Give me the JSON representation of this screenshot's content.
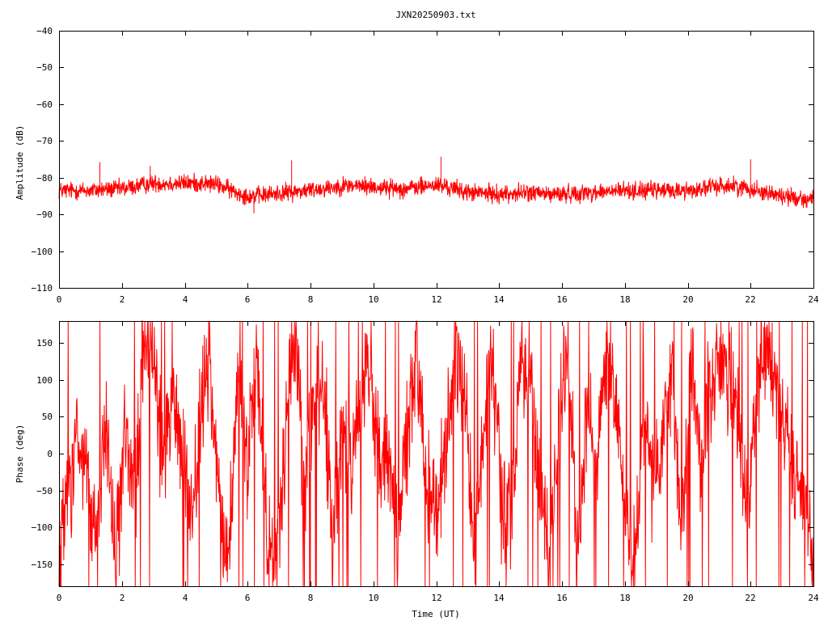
{
  "chart_data": {
    "title": "JXN20250903.txt",
    "type": "line",
    "color": "#ff0000",
    "xlabel": "Time (UT)",
    "xlim": [
      0,
      24
    ],
    "xticks": [
      0,
      2,
      4,
      6,
      8,
      10,
      12,
      14,
      16,
      18,
      20,
      22,
      24
    ],
    "panels": [
      {
        "id": "amplitude",
        "ylabel": "Amplitude (dB)",
        "ylim": [
          -110,
          -40
        ],
        "yticks": [
          -110,
          -100,
          -90,
          -80,
          -70,
          -60,
          -50,
          -40
        ],
        "series": [
          {
            "x": [
              0,
              0.5,
              1,
              1.5,
              2,
              2.5,
              3,
              3.5,
              4,
              4.5,
              5,
              5.5,
              6,
              6.5,
              7,
              7.5,
              8,
              8.5,
              9,
              9.5,
              10,
              10.5,
              11,
              11.5,
              12,
              12.5,
              13,
              13.5,
              14,
              14.5,
              15,
              15.5,
              16,
              16.5,
              17,
              17.5,
              18,
              18.5,
              19,
              19.5,
              20,
              20.5,
              21,
              21.5,
              22,
              22.5,
              23,
              23.5,
              24
            ],
            "mean": [
              -83.5,
              -83.5,
              -83.5,
              -83.2,
              -83,
              -82.3,
              -81.5,
              -81.6,
              -81.5,
              -81.5,
              -81.8,
              -83.5,
              -85,
              -84.8,
              -84.2,
              -83.8,
              -83.3,
              -82.8,
              -82.2,
              -82.2,
              -82.5,
              -82.8,
              -83,
              -82.5,
              -82,
              -82.8,
              -84,
              -84.2,
              -84.5,
              -84.3,
              -84,
              -84.5,
              -84.5,
              -84.2,
              -84,
              -83.8,
              -83.5,
              -83.5,
              -83.5,
              -83.5,
              -83.5,
              -83,
              -82.2,
              -82.3,
              -83,
              -84,
              -85,
              -85.5,
              -86
            ],
            "spread": 3.6,
            "x_min": [
              6.2
            ],
            "y_min": [
              -89.7
            ],
            "x_max": [
              1.3,
              2.9,
              7.4,
              12.15,
              22
            ],
            "y_max": [
              -75.8,
              -76.8,
              -75.3,
              -74.3,
              -75
            ]
          }
        ]
      },
      {
        "id": "phase",
        "ylabel": "Phase (deg)",
        "ylim": [
          -180,
          180
        ],
        "yticks": [
          -150,
          -100,
          -50,
          0,
          50,
          100,
          150
        ],
        "series": [
          {
            "x": [
              0,
              0.3,
              0.6,
              0.9,
              1.2,
              1.5,
              1.8,
              2.1,
              2.4,
              2.7,
              3,
              3.3,
              3.6,
              3.9,
              4.2,
              4.5,
              4.8,
              5.1,
              5.4,
              5.7,
              6,
              6.3,
              6.6,
              6.9,
              7.2,
              7.5,
              7.8,
              8.1,
              8.4,
              8.7,
              9,
              9.3,
              9.6,
              9.9,
              10.2,
              10.5,
              10.8,
              11.1,
              11.4,
              11.7,
              12,
              12.3,
              12.6,
              12.9,
              13.2,
              13.5,
              13.8,
              14.1,
              14.4,
              14.7,
              15,
              15.3,
              15.6,
              15.9,
              16.2,
              16.5,
              16.8,
              17.1,
              17.4,
              17.7,
              18,
              18.3,
              18.6,
              18.9,
              19.2,
              19.5,
              19.8,
              20.1,
              20.4,
              20.7,
              21,
              21.3,
              21.6,
              21.9,
              22.2,
              22.5,
              22.8,
              23.1,
              23.4,
              23.7,
              24
            ],
            "center": [
              -120,
              -60,
              20,
              -40,
              -140,
              60,
              -150,
              40,
              -70,
              130,
              140,
              -20,
              90,
              20,
              -100,
              60,
              120,
              -60,
              -130,
              90,
              -10,
              130,
              -90,
              -170,
              20,
              150,
              -30,
              60,
              110,
              -100,
              30,
              -20,
              60,
              110,
              10,
              -10,
              -110,
              40,
              120,
              -40,
              -60,
              -10,
              150,
              80,
              -140,
              20,
              120,
              -90,
              -70,
              140,
              100,
              -60,
              -120,
              30,
              150,
              -140,
              60,
              -20,
              130,
              70,
              -70,
              -150,
              60,
              -50,
              20,
              110,
              -120,
              150,
              -30,
              90,
              130,
              110,
              40,
              -80,
              90,
              140,
              100,
              40,
              -20,
              -60,
              -170
            ],
            "spread": 95
          }
        ]
      }
    ]
  }
}
